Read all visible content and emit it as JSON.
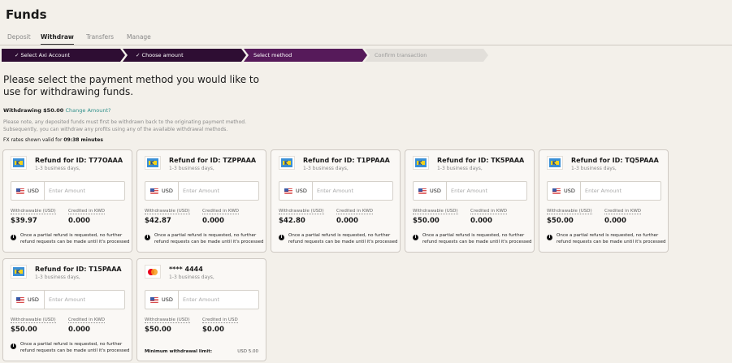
{
  "page": {
    "title": "Funds"
  },
  "tabs": [
    {
      "label": "Deposit"
    },
    {
      "label": "Withdraw",
      "active": true
    },
    {
      "label": "Transfers"
    },
    {
      "label": "Manage"
    }
  ],
  "steps": [
    {
      "label": "Select Axi Account",
      "check": "✓",
      "state": "done",
      "color": "#2e0d33"
    },
    {
      "label": "Choose amount",
      "check": "✓",
      "state": "done",
      "color": "#2e0d33"
    },
    {
      "label": "Select method",
      "check": "",
      "state": "current",
      "color": "#561a5a"
    },
    {
      "label": "Confirm transaction",
      "check": "",
      "state": "pending",
      "color": "#e2dfda"
    }
  ],
  "heading": "Please select the payment method you would like to use for withdrawing funds.",
  "withdrawing": {
    "label": "Withdrawing $50.00",
    "link": "Change Amount?"
  },
  "note": "Please note, any deposited funds must first be withdrawn back to the originating payment method. Subsequently, you can withdraw any profits using any of the available withdrawal methods.",
  "fx": {
    "prefix": "FX rates shown valid for ",
    "time": "09:38 minutes"
  },
  "cards": [
    {
      "title": "Refund for ID: T77OAAA",
      "sub": "1-3 business days,",
      "currency": "USD",
      "placeholder": "Enter Amount",
      "withdrawable_label": "Withdrawable (USD)",
      "withdrawable": "$39.97",
      "credited_label": "Credited in KWD",
      "credited": "0.000",
      "info": "Once a partial refund is requested, no further refund requests can be made until it's processed",
      "icon": "bank-transfer-icon"
    },
    {
      "title": "Refund for ID: TZPPAAA",
      "sub": "1-3 business days,",
      "currency": "USD",
      "placeholder": "Enter Amount",
      "withdrawable_label": "Withdrawable (USD)",
      "withdrawable": "$42.87",
      "credited_label": "Credited in KWD",
      "credited": "0.000",
      "info": "Once a partial refund is requested, no further refund requests can be made until it's processed",
      "icon": "bank-transfer-icon"
    },
    {
      "title": "Refund for ID: T1PPAAA",
      "sub": "1-3 business days,",
      "currency": "USD",
      "placeholder": "Enter Amount",
      "withdrawable_label": "Withdrawable (USD)",
      "withdrawable": "$42.80",
      "credited_label": "Credited in KWD",
      "credited": "0.000",
      "info": "Once a partial refund is requested, no further refund requests can be made until it's processed",
      "icon": "bank-transfer-icon"
    },
    {
      "title": "Refund for ID: TK5PAAA",
      "sub": "1-3 business days,",
      "currency": "USD",
      "placeholder": "Enter Amount",
      "withdrawable_label": "Withdrawable (USD)",
      "withdrawable": "$50.00",
      "credited_label": "Credited in KWD",
      "credited": "0.000",
      "info": "Once a partial refund is requested, no further refund requests can be made until it's processed",
      "icon": "bank-transfer-icon"
    },
    {
      "title": "Refund for ID: TQ5PAAA",
      "sub": "1-3 business days,",
      "currency": "USD",
      "placeholder": "Enter Amount",
      "withdrawable_label": "Withdrawable (USD)",
      "withdrawable": "$50.00",
      "credited_label": "Credited in KWD",
      "credited": "0.000",
      "info": "Once a partial refund is requested, no further refund requests can be made until it's processed",
      "icon": "bank-transfer-icon"
    },
    {
      "title": "Refund for ID: T15PAAA",
      "sub": "1-3 business days,",
      "currency": "USD",
      "placeholder": "Enter Amount",
      "withdrawable_label": "Withdrawable (USD)",
      "withdrawable": "$50.00",
      "credited_label": "Credited in KWD",
      "credited": "0.000",
      "info": "Once a partial refund is requested, no further refund requests can be made until it's processed",
      "icon": "bank-transfer-icon"
    },
    {
      "title": "**** 4444",
      "sub": "1-3 business days,",
      "currency": "USD",
      "placeholder": "Enter Amount",
      "withdrawable_label": "Withdrawable (USD)",
      "withdrawable": "$50.00",
      "credited_label": "Credited in USD",
      "credited": "$0.00",
      "min_label": "Minimum withdrawal limit:",
      "min_value": "USD 5.00",
      "icon": "mastercard-icon"
    }
  ]
}
